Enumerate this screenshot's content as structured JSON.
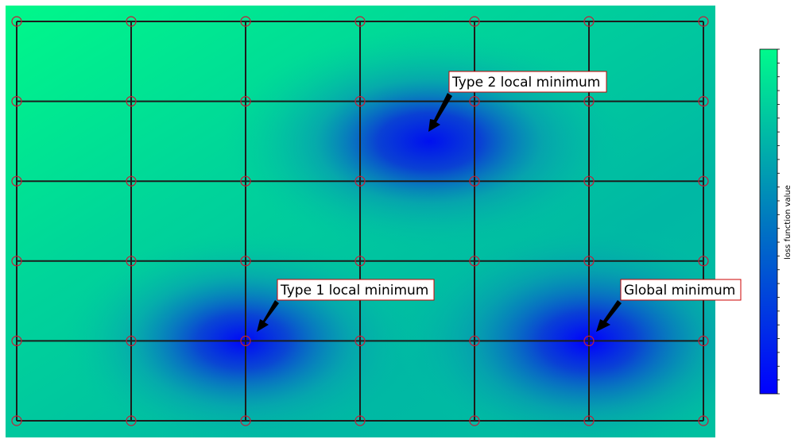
{
  "plot": {
    "colors": {
      "low": "#0000ff",
      "high": "#00fa8c",
      "grid_line": "#1c1c1c",
      "node_stroke": "#c41e3a",
      "box_border": "#cc0000",
      "arrow": "#000000"
    },
    "grid": {
      "cols": 7,
      "rows": 6
    },
    "annotations": [
      {
        "label": "Type 2 local minimum",
        "box_side": "right"
      },
      {
        "label": "Type 1 local minimum",
        "box_side": "right"
      },
      {
        "label": "Global minimum",
        "box_side": "right"
      }
    ]
  },
  "colorbar": {
    "label": "loss function value",
    "scale": "log",
    "tick_count": 26
  }
}
